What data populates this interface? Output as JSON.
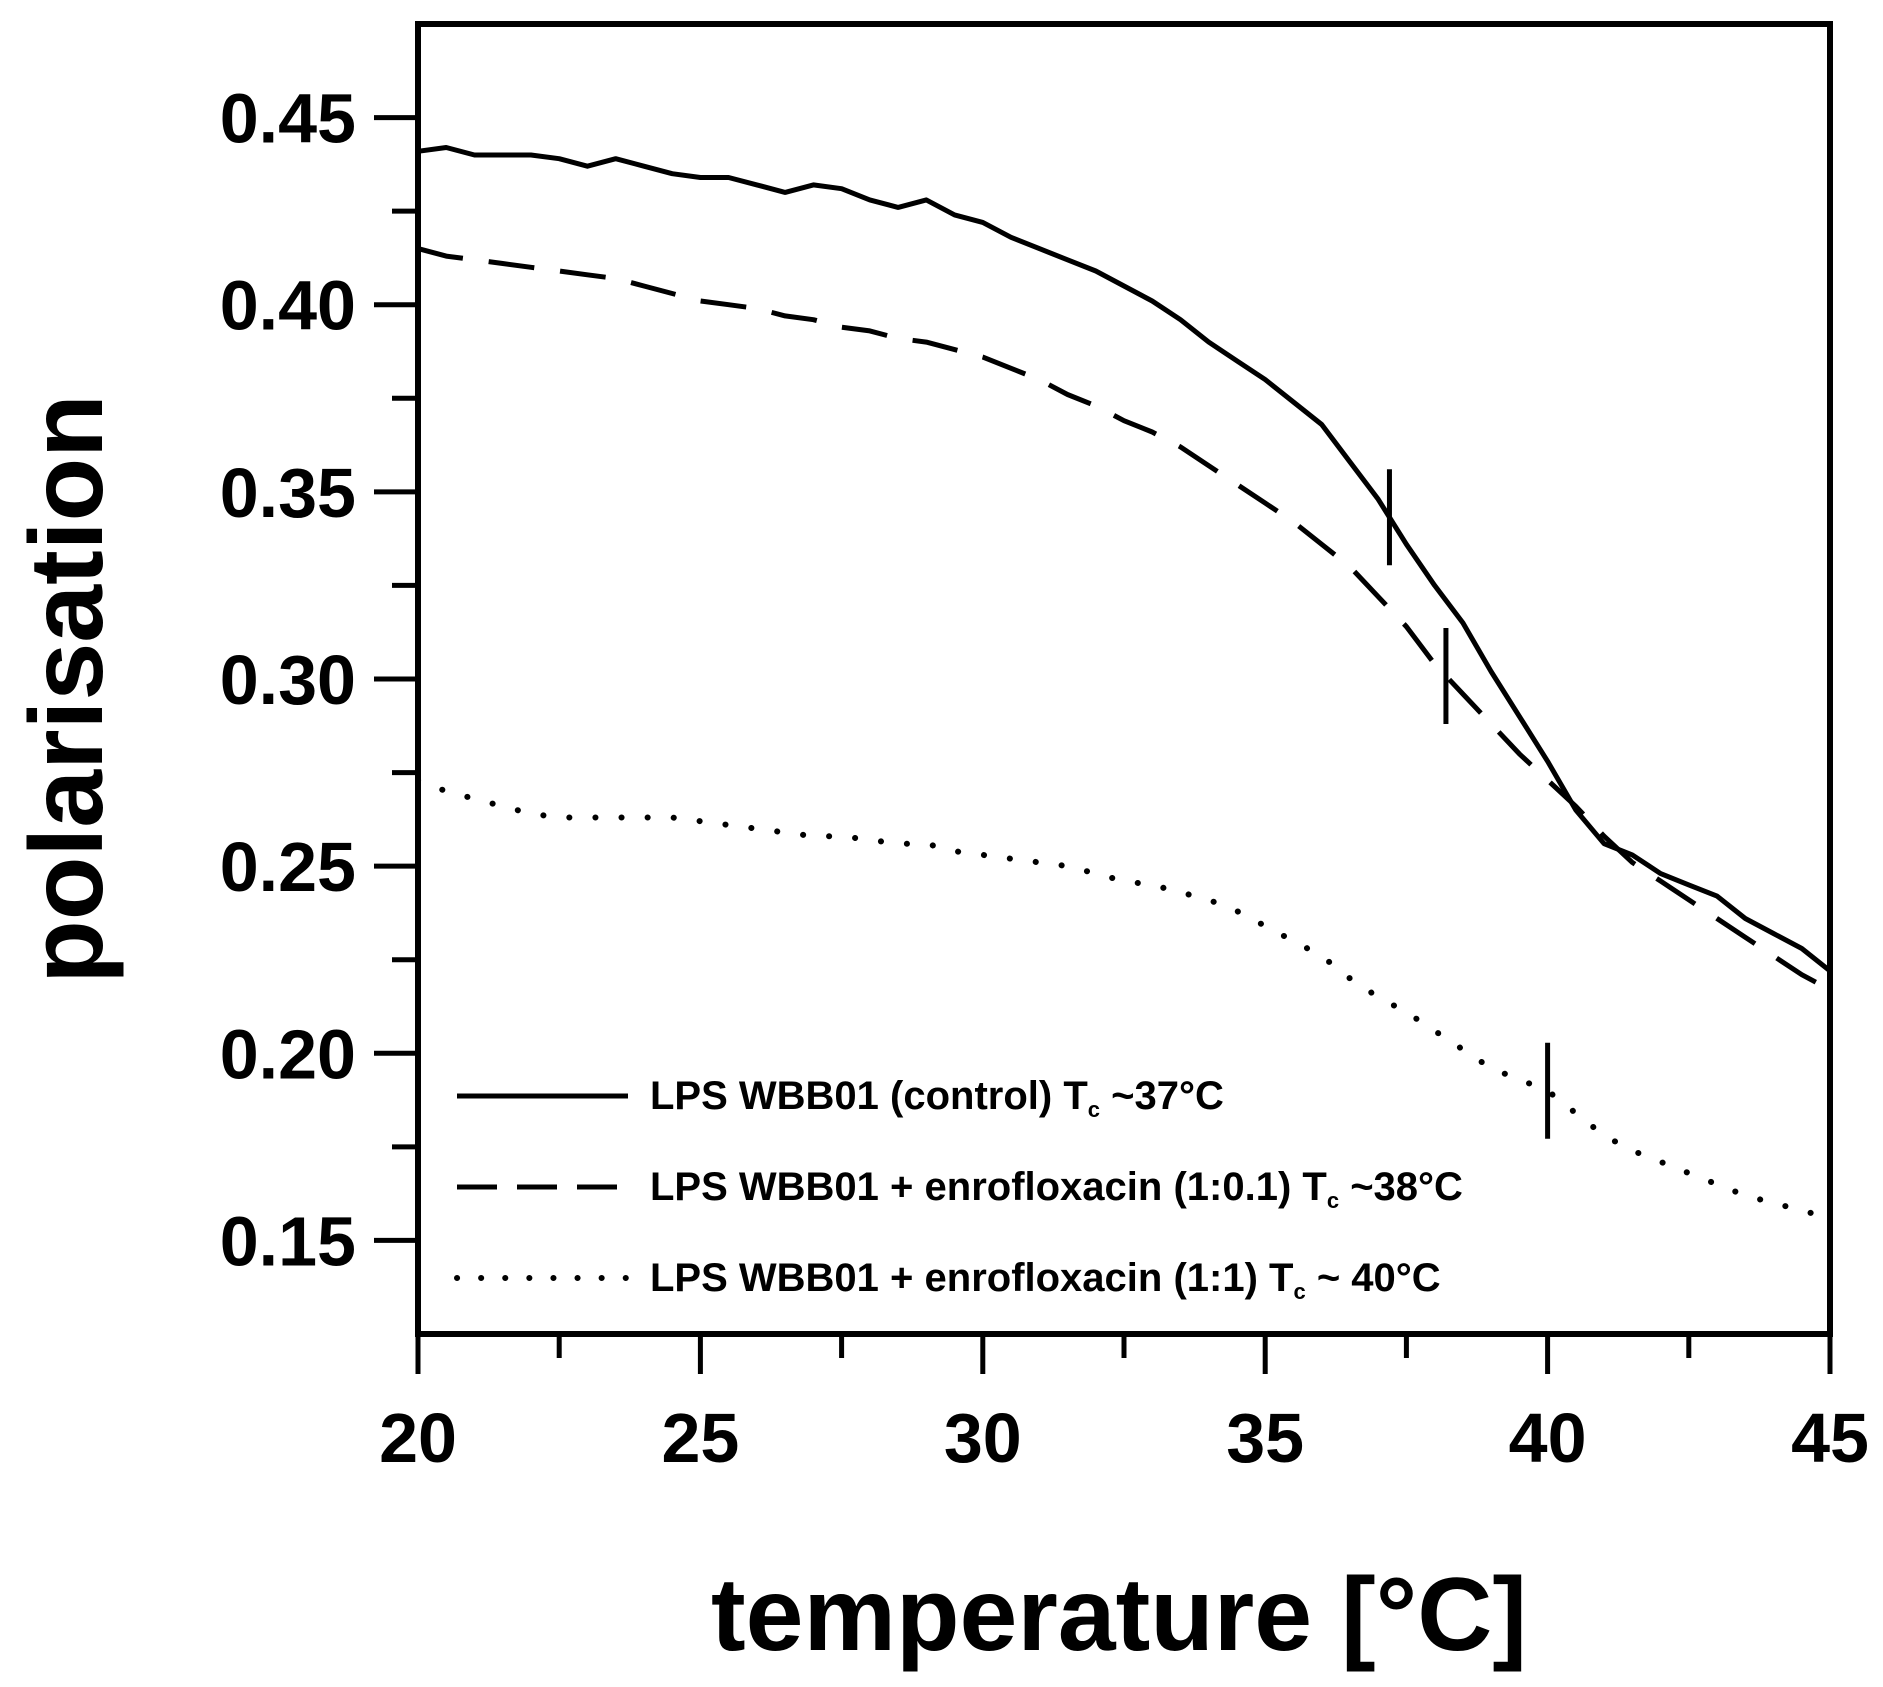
{
  "chart_data": {
    "type": "line",
    "title": "",
    "xlabel": "temperature [°C]",
    "ylabel": "polarisation",
    "xlim": [
      20,
      45
    ],
    "ylim": [
      0.125,
      0.475
    ],
    "xticks": [
      20,
      25,
      30,
      35,
      40,
      45
    ],
    "xtick_labels": [
      "20",
      "25",
      "30",
      "35",
      "40",
      "45"
    ],
    "yticks": [
      0.15,
      0.2,
      0.25,
      0.3,
      0.35,
      0.4,
      0.45
    ],
    "ytick_labels": [
      "0.15",
      "0.20",
      "0.25",
      "0.30",
      "0.35",
      "0.40",
      "0.45"
    ],
    "grid": false,
    "legend_position": "bottom-left",
    "series": [
      {
        "name": "LPS WBB01 (control) T",
        "legend_prefix": "LPS WBB01 (control) T",
        "legend_sub": "c",
        "legend_suffix": " ~37°C",
        "style": "solid",
        "x": [
          20,
          20.5,
          21,
          21.5,
          22,
          22.5,
          23,
          23.5,
          24,
          24.5,
          25,
          25.5,
          26,
          26.5,
          27,
          27.5,
          28,
          28.5,
          29,
          29.5,
          30,
          30.5,
          31,
          31.5,
          32,
          32.5,
          33,
          33.5,
          34,
          34.5,
          35,
          35.5,
          36,
          36.5,
          37,
          37.5,
          38,
          38.5,
          39,
          39.5,
          40,
          40.5,
          41,
          41.5,
          42,
          42.5,
          43,
          43.5,
          44,
          44.5,
          45
        ],
        "y": [
          0.441,
          0.442,
          0.44,
          0.44,
          0.44,
          0.439,
          0.437,
          0.439,
          0.437,
          0.435,
          0.434,
          0.434,
          0.432,
          0.43,
          0.432,
          0.431,
          0.428,
          0.426,
          0.428,
          0.424,
          0.422,
          0.418,
          0.415,
          0.412,
          0.409,
          0.405,
          0.401,
          0.396,
          0.39,
          0.385,
          0.38,
          0.374,
          0.368,
          0.358,
          0.348,
          0.336,
          0.325,
          0.315,
          0.302,
          0.29,
          0.278,
          0.265,
          0.256,
          0.253,
          0.248,
          0.245,
          0.242,
          0.236,
          0.232,
          0.228,
          0.222
        ],
        "transition_marker": 37.2
      },
      {
        "name": "LPS WBB01 + enrofloxacin (1:0.1) T",
        "legend_prefix": "LPS WBB01 + enrofloxacin (1:0.1) T",
        "legend_sub": "c",
        "legend_suffix": " ~38°C",
        "style": "dashed",
        "x": [
          20,
          20.5,
          21,
          21.5,
          22,
          22.5,
          23,
          23.5,
          24,
          24.5,
          25,
          25.5,
          26,
          26.5,
          27,
          27.5,
          28,
          28.5,
          29,
          29.5,
          30,
          30.5,
          31,
          31.5,
          32,
          32.5,
          33,
          33.5,
          34,
          34.5,
          35,
          35.5,
          36,
          36.5,
          37,
          37.5,
          38,
          38.5,
          39,
          39.5,
          40,
          40.5,
          41,
          41.5,
          42,
          42.5,
          43,
          43.5,
          44,
          44.5,
          45
        ],
        "y": [
          0.415,
          0.413,
          0.412,
          0.411,
          0.41,
          0.409,
          0.408,
          0.407,
          0.405,
          0.403,
          0.401,
          0.4,
          0.399,
          0.397,
          0.396,
          0.394,
          0.393,
          0.391,
          0.39,
          0.388,
          0.386,
          0.383,
          0.38,
          0.376,
          0.373,
          0.369,
          0.366,
          0.362,
          0.357,
          0.352,
          0.347,
          0.342,
          0.336,
          0.33,
          0.322,
          0.314,
          0.304,
          0.296,
          0.288,
          0.28,
          0.273,
          0.266,
          0.258,
          0.251,
          0.246,
          0.241,
          0.236,
          0.231,
          0.226,
          0.221,
          0.217
        ],
        "transition_marker": 38.2
      },
      {
        "name": "LPS WBB01 + enrofloxacin (1:1) T",
        "legend_prefix": "LPS WBB01 + enrofloxacin (1:1) T",
        "legend_sub": "c",
        "legend_suffix": " ~ 40°C",
        "style": "dotted",
        "x": [
          20,
          20.5,
          21,
          21.5,
          22,
          22.5,
          23,
          23.5,
          24,
          24.5,
          25,
          25.5,
          26,
          26.5,
          27,
          27.5,
          28,
          28.5,
          29,
          29.5,
          30,
          30.5,
          31,
          31.5,
          32,
          32.5,
          33,
          33.5,
          34,
          34.5,
          35,
          35.5,
          36,
          36.5,
          37,
          37.5,
          38,
          38.5,
          39,
          39.5,
          40,
          40.5,
          41,
          41.5,
          42,
          42.5,
          43,
          43.5,
          44,
          44.5,
          45
        ],
        "y": [
          0.273,
          0.27,
          0.268,
          0.266,
          0.264,
          0.263,
          0.263,
          0.263,
          0.263,
          0.263,
          0.262,
          0.261,
          0.26,
          0.259,
          0.258,
          0.258,
          0.257,
          0.256,
          0.256,
          0.254,
          0.253,
          0.252,
          0.251,
          0.25,
          0.248,
          0.246,
          0.245,
          0.243,
          0.241,
          0.238,
          0.234,
          0.23,
          0.226,
          0.22,
          0.215,
          0.211,
          0.206,
          0.201,
          0.196,
          0.193,
          0.19,
          0.184,
          0.178,
          0.174,
          0.171,
          0.168,
          0.165,
          0.162,
          0.16,
          0.158,
          0.156
        ],
        "transition_marker": 40.0
      }
    ]
  }
}
